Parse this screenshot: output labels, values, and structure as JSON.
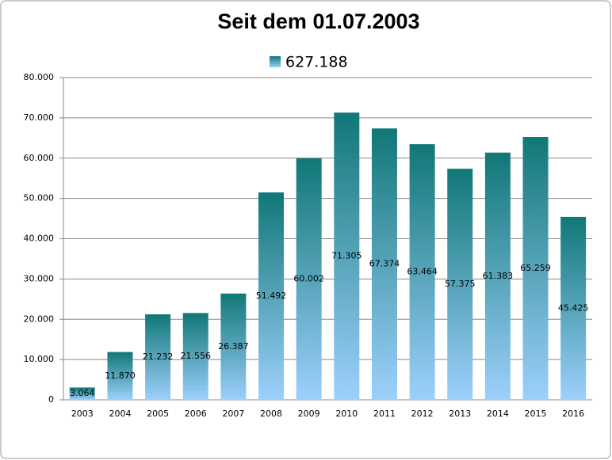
{
  "chart_data": {
    "type": "bar",
    "title": "Seit dem 01.07.2003",
    "categories": [
      "2003",
      "2004",
      "2005",
      "2006",
      "2007",
      "2008",
      "2009",
      "2010",
      "2011",
      "2012",
      "2013",
      "2014",
      "2015",
      "2016"
    ],
    "series": [
      {
        "name": "627.188",
        "gradient": [
          "#117777",
          "#9dd0fc"
        ],
        "values": [
          3064,
          11870,
          21232,
          21556,
          26387,
          51492,
          60002,
          71305,
          67374,
          63464,
          57375,
          61383,
          65259,
          45425
        ],
        "value_labels": [
          "3.064",
          "11.870",
          "21.232",
          "21.556",
          "26.387",
          "51.492",
          "60.002",
          "71.305",
          "67.374",
          "63.464",
          "57.375",
          "61.383",
          "65.259",
          "45.425"
        ]
      }
    ],
    "ylim": [
      0,
      80000
    ],
    "yticks": [
      0,
      {
        "value": 10000,
        "label": "10.000"
      },
      {
        "value": 20000,
        "label": "20.000"
      },
      {
        "value": 30000,
        "label": "30.000"
      },
      {
        "value": 40000,
        "label": "40.000"
      },
      {
        "value": 50000,
        "label": "50.000"
      },
      {
        "value": 60000,
        "label": "60.000"
      },
      {
        "value": 70000,
        "label": "70.000"
      },
      {
        "value": 80000,
        "label": "80.000"
      }
    ],
    "grid": true,
    "legend": "top"
  }
}
